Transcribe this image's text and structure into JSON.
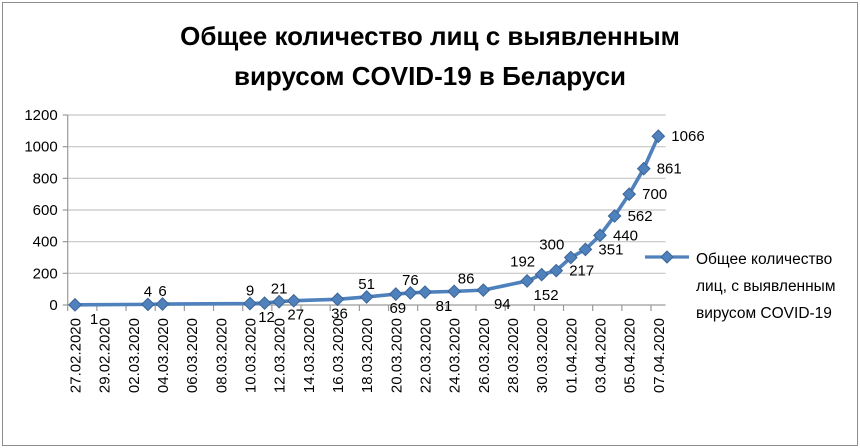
{
  "window": {
    "background": "#ffffff",
    "border_color": "#8c8c8c"
  },
  "title": {
    "text": "Общее количество лиц с выявленным вирусом COVID-19 в Беларуси",
    "lines": [
      "Общее количество лиц с выявленным",
      "вирусом COVID-19 в Беларуси"
    ]
  },
  "legend": {
    "label": "Общее количество\nлиц, с выявленным\nвирусом COVID-19",
    "marker": "diamond-line",
    "series_color": "#4f81bd"
  },
  "colors": {
    "series": "#4f81bd",
    "marker_edge": "#3c6595",
    "gridline": "#c6c6c6",
    "axis": "#9a9a9a",
    "text": "#000000"
  },
  "chart_data": {
    "type": "line",
    "title": "Общее количество лиц с выявленным вирусом COVID-19 в Беларуси",
    "xlabel": "",
    "ylabel": "",
    "grid": true,
    "legend_position": "right",
    "y_axis": {
      "min": 0,
      "max": 1200,
      "step": 200,
      "tick_labels": [
        "0",
        "200",
        "400",
        "600",
        "800",
        "1000",
        "1200"
      ]
    },
    "x_axis": {
      "first_category": "27.02.2020",
      "last_category": "07.04.2020",
      "category_count_daily": 41,
      "label_rotation_deg": 90,
      "tick_labels": [
        "27.02.2020",
        "29.02.2020",
        "02.03.2020",
        "04.03.2020",
        "06.03.2020",
        "08.03.2020",
        "10.03.2020",
        "12.03.2020",
        "14.03.2020",
        "16.03.2020",
        "18.03.2020",
        "20.03.2020",
        "22.03.2020",
        "24.03.2020",
        "26.03.2020",
        "28.03.2020",
        "30.03.2020",
        "01.04.2020",
        "03.04.2020",
        "05.04.2020",
        "07.04.2020"
      ]
    },
    "series": [
      {
        "name": "Общее количество лиц, с выявленным вирусом COVID-19",
        "color": "#4f81bd",
        "marker": "diamond",
        "points": [
          {
            "date": "27.02.2020",
            "value": 1,
            "label_pos": "below-right"
          },
          {
            "date": "03.03.2020",
            "value": 4,
            "label_pos": "above"
          },
          {
            "date": "04.03.2020",
            "value": 6,
            "label_pos": "above"
          },
          {
            "date": "10.03.2020",
            "value": 9,
            "label_pos": "above"
          },
          {
            "date": "11.03.2020",
            "value": 12,
            "label_pos": "below"
          },
          {
            "date": "12.03.2020",
            "value": 21,
            "label_pos": "above"
          },
          {
            "date": "13.03.2020",
            "value": 27,
            "label_pos": "below"
          },
          {
            "date": "16.03.2020",
            "value": 36,
            "label_pos": "below"
          },
          {
            "date": "18.03.2020",
            "value": 51,
            "label_pos": "above"
          },
          {
            "date": "20.03.2020",
            "value": 69,
            "label_pos": "below"
          },
          {
            "date": "21.03.2020",
            "value": 76,
            "label_pos": "above"
          },
          {
            "date": "22.03.2020",
            "value": 81,
            "label_pos": "below-right"
          },
          {
            "date": "24.03.2020",
            "value": 86,
            "label_pos": "above-right"
          },
          {
            "date": "26.03.2020",
            "value": 94,
            "label_pos": "below-right"
          },
          {
            "date": "29.03.2020",
            "value": 152,
            "label_pos": "below-right"
          },
          {
            "date": "30.03.2020",
            "value": 192,
            "label_pos": "above-left"
          },
          {
            "date": "31.03.2020",
            "value": 217,
            "label_pos": "right"
          },
          {
            "date": "01.04.2020",
            "value": 300,
            "label_pos": "above-left"
          },
          {
            "date": "02.04.2020",
            "value": 351,
            "label_pos": "right"
          },
          {
            "date": "03.04.2020",
            "value": 440,
            "label_pos": "right"
          },
          {
            "date": "04.04.2020",
            "value": 562,
            "label_pos": "right"
          },
          {
            "date": "05.04.2020",
            "value": 700,
            "label_pos": "right"
          },
          {
            "date": "06.04.2020",
            "value": 861,
            "label_pos": "right"
          },
          {
            "date": "07.04.2020",
            "value": 1066,
            "label_pos": "right"
          }
        ]
      }
    ]
  }
}
